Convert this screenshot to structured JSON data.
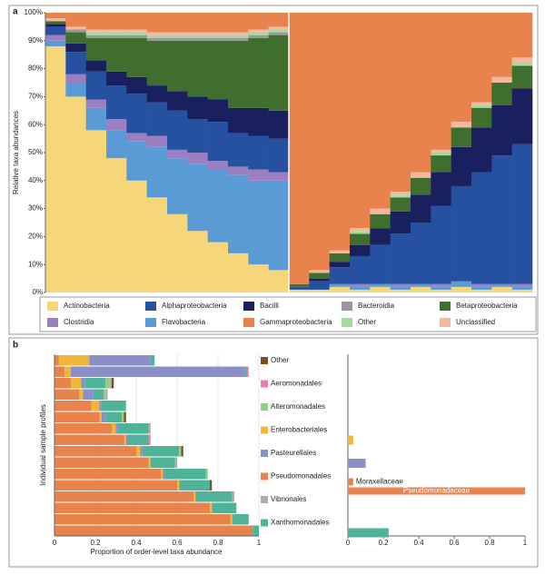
{
  "chart_data": [
    {
      "type": "stacked-bar",
      "label": "a",
      "ylabel": "Relative taxa abundances",
      "ylim": [
        0,
        100
      ],
      "yticks": [
        {
          "value": 0,
          "label": "0%"
        },
        {
          "value": 10,
          "label": "10%"
        },
        {
          "value": 20,
          "label": "20%"
        },
        {
          "value": 30,
          "label": "30%"
        },
        {
          "value": 40,
          "label": "40%"
        },
        {
          "value": 50,
          "label": "50%"
        },
        {
          "value": 60,
          "label": "60%"
        },
        {
          "value": 70,
          "label": "70%"
        },
        {
          "value": 80,
          "label": "80%"
        },
        {
          "value": 90,
          "label": "90%"
        },
        {
          "value": 100,
          "label": "100%"
        }
      ],
      "series": [
        {
          "name": "Actinobacteria",
          "color": "#f5d77a",
          "values": [
            88,
            70,
            58,
            48,
            40,
            34,
            28,
            22,
            18,
            14,
            10,
            8,
            1,
            1,
            2,
            1,
            2,
            1,
            2,
            1,
            2,
            1,
            2,
            1
          ]
        },
        {
          "name": "Flavobacteria",
          "color": "#5b9bd5",
          "values": [
            2,
            5,
            8,
            10,
            14,
            18,
            20,
            24,
            26,
            28,
            30,
            32,
            0,
            0,
            1,
            1,
            1,
            1,
            1,
            1,
            2,
            1,
            1,
            1
          ]
        },
        {
          "name": "Clostridia",
          "color": "#9b7fc0",
          "values": [
            2,
            3,
            3,
            4,
            3,
            4,
            3,
            4,
            3,
            3,
            4,
            3,
            0,
            0,
            0,
            1,
            0,
            1,
            0,
            1,
            0,
            1,
            0,
            1
          ]
        },
        {
          "name": "Alphaproteobacteria",
          "color": "#2650a0",
          "values": [
            3,
            8,
            10,
            12,
            14,
            12,
            14,
            12,
            14,
            12,
            12,
            12,
            1,
            3,
            6,
            10,
            14,
            18,
            22,
            28,
            34,
            40,
            46,
            50
          ]
        },
        {
          "name": "Bacilli",
          "color": "#1a1f5e",
          "values": [
            1,
            3,
            4,
            5,
            6,
            6,
            7,
            8,
            8,
            9,
            10,
            10,
            0,
            1,
            2,
            4,
            6,
            8,
            10,
            12,
            14,
            16,
            18,
            20
          ]
        },
        {
          "name": "Betaproteobacteria",
          "color": "#3f6e2e",
          "values": [
            1,
            4,
            8,
            12,
            14,
            16,
            18,
            20,
            21,
            24,
            25,
            27,
            1,
            2,
            3,
            4,
            5,
            5,
            6,
            6,
            7,
            7,
            8,
            8
          ]
        },
        {
          "name": "Bacteroidia",
          "color": "#999999",
          "values": [
            0,
            1,
            1,
            1,
            1,
            1,
            1,
            1,
            1,
            1,
            1,
            1,
            0,
            0,
            0,
            0,
            0,
            0,
            0,
            0,
            0,
            0,
            0,
            0
          ]
        },
        {
          "name": "Other",
          "color": "#a6d9a0",
          "values": [
            0,
            0,
            1,
            1,
            1,
            1,
            1,
            1,
            1,
            1,
            1,
            1,
            0,
            0,
            0,
            1,
            0,
            1,
            0,
            1,
            0,
            1,
            0,
            1
          ]
        },
        {
          "name": "Unclassified",
          "color": "#f2b8a0",
          "values": [
            1,
            1,
            1,
            1,
            1,
            1,
            1,
            1,
            1,
            1,
            1,
            1,
            0,
            1,
            1,
            1,
            2,
            1,
            2,
            1,
            2,
            1,
            2,
            2
          ]
        },
        {
          "name": "Gammaproteobacteria",
          "color": "#e8834e",
          "values": [
            2,
            5,
            6,
            6,
            6,
            7,
            7,
            7,
            7,
            7,
            6,
            5,
            97,
            92,
            85,
            77,
            70,
            64,
            57,
            49,
            39,
            32,
            23,
            16
          ]
        }
      ]
    },
    {
      "type": "stacked-barh",
      "label": "b",
      "ylabel": "Individual sample profiles",
      "xlabel": "Proportion of order-level taxa abundance",
      "xlim": [
        0,
        1
      ],
      "xticks": [
        0,
        0.2,
        0.4,
        0.6,
        0.8,
        1
      ],
      "series": [
        {
          "name": "Other",
          "color": "#7a4f1e",
          "values": [
            0,
            0,
            0.01,
            0,
            0,
            0.01,
            0,
            0,
            0.01,
            0,
            0,
            0.01,
            0,
            0,
            0,
            0
          ]
        },
        {
          "name": "Aeromonadales",
          "color": "#e67eb0",
          "values": [
            0,
            0.01,
            0,
            0,
            0,
            0,
            0,
            0.01,
            0,
            0,
            0,
            0,
            0,
            0,
            0,
            0
          ]
        },
        {
          "name": "Alteromonadales",
          "color": "#8fd080",
          "values": [
            0,
            0,
            0.02,
            0.01,
            0,
            0.01,
            0,
            0,
            0.01,
            0,
            0.01,
            0,
            0,
            0,
            0,
            0
          ]
        },
        {
          "name": "Enterobacteriales",
          "color": "#f0b63a",
          "values": [
            0.15,
            0.03,
            0.05,
            0.02,
            0.04,
            0.01,
            0.02,
            0.01,
            0.02,
            0.01,
            0.01,
            0.01,
            0.01,
            0.01,
            0.01,
            0
          ]
        },
        {
          "name": "Pasteurellales",
          "color": "#8a8fc8",
          "values": [
            0.3,
            0.85,
            0.02,
            0.05,
            0.01,
            0.02,
            0.01,
            0.01,
            0.01,
            0,
            0.01,
            0,
            0,
            0,
            0,
            0
          ]
        },
        {
          "name": "Pseudomonadales",
          "color": "#e8834e",
          "values": [
            0.02,
            0.05,
            0.08,
            0.12,
            0.18,
            0.22,
            0.28,
            0.34,
            0.4,
            0.46,
            0.52,
            0.6,
            0.68,
            0.76,
            0.86,
            0.97
          ]
        },
        {
          "name": "Vibrionales",
          "color": "#b0aab0",
          "values": [
            0,
            0,
            0.01,
            0.01,
            0,
            0,
            0.01,
            0,
            0,
            0.01,
            0,
            0,
            0.01,
            0,
            0,
            0
          ]
        },
        {
          "name": "Xanthomonadales",
          "color": "#4fb39a",
          "values": [
            0.02,
            0.01,
            0.1,
            0.05,
            0.12,
            0.08,
            0.15,
            0.1,
            0.18,
            0.12,
            0.2,
            0.15,
            0.18,
            0.12,
            0.08,
            0.03
          ]
        }
      ]
    },
    {
      "type": "barh",
      "xlim": [
        0,
        1
      ],
      "xticks": [
        0,
        0.2,
        0.4,
        0.6,
        0.8,
        1
      ],
      "values": [
        null,
        null,
        null,
        0.03,
        0.1,
        null,
        null,
        0.23
      ],
      "series": [
        {
          "name": "Moraxellaceae",
          "color": "#e8834e",
          "values": [
            null,
            null,
            null,
            null,
            null,
            0.03,
            null,
            null
          ]
        },
        {
          "name": "Pseudomonadaceae",
          "color": "#e8834e",
          "values": [
            null,
            null,
            null,
            null,
            null,
            1,
            null,
            null
          ]
        }
      ]
    }
  ]
}
